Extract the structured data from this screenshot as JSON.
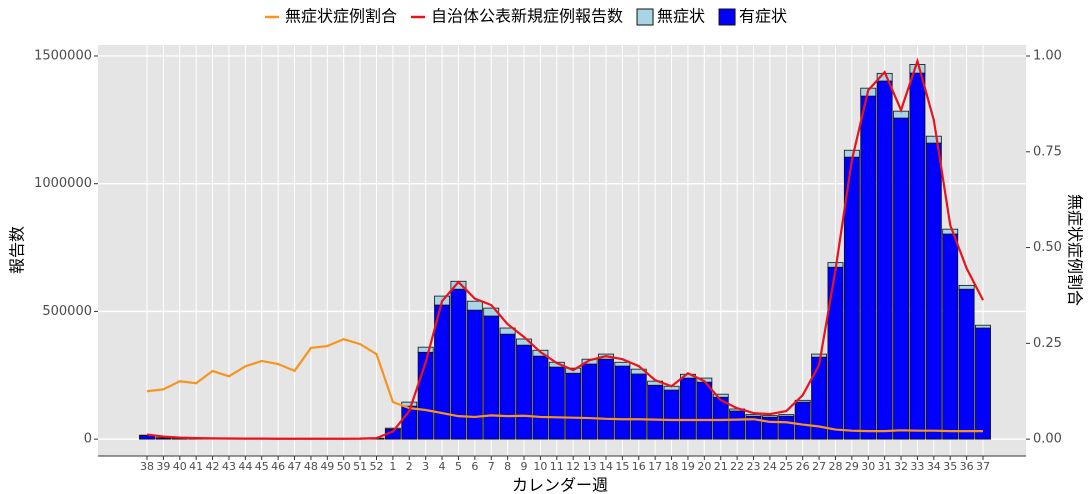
{
  "chart_data": {
    "type": "combo",
    "x_label": "カレンダー週",
    "y_label": "報告数",
    "y2_label": "無症状症例割合",
    "categories": [
      "38",
      "39",
      "40",
      "41",
      "42",
      "43",
      "44",
      "45",
      "46",
      "47",
      "48",
      "49",
      "50",
      "51",
      "52",
      "1",
      "2",
      "3",
      "4",
      "5",
      "6",
      "7",
      "8",
      "9",
      "10",
      "11",
      "12",
      "13",
      "14",
      "15",
      "16",
      "17",
      "18",
      "19",
      "20",
      "21",
      "22",
      "23",
      "24",
      "25",
      "26",
      "27",
      "28",
      "29",
      "30",
      "31",
      "32",
      "33",
      "34",
      "35",
      "36",
      "37"
    ],
    "series": [
      {
        "name": "無症状症例割合",
        "type": "line",
        "axis": "y2",
        "color": "#f7941d",
        "values": [
          0.125,
          0.13,
          0.151,
          0.146,
          0.178,
          0.164,
          0.19,
          0.204,
          0.196,
          0.178,
          0.238,
          0.243,
          0.261,
          0.248,
          0.222,
          0.097,
          0.081,
          0.076,
          0.068,
          0.06,
          0.058,
          0.062,
          0.06,
          0.061,
          0.058,
          0.057,
          0.056,
          0.055,
          0.053,
          0.052,
          0.052,
          0.051,
          0.05,
          0.05,
          0.05,
          0.05,
          0.051,
          0.052,
          0.045,
          0.044,
          0.038,
          0.033,
          0.025,
          0.022,
          0.021,
          0.021,
          0.023,
          0.022,
          0.022,
          0.021,
          0.021,
          0.021
        ]
      },
      {
        "name": "自治体公表新規症例報告数",
        "type": "line",
        "color": "#e8141c",
        "values": [
          18000,
          10000,
          6000,
          4000,
          3000,
          2500,
          2000,
          2000,
          1500,
          1500,
          1500,
          1500,
          1500,
          2000,
          4000,
          30000,
          110000,
          300000,
          540000,
          615000,
          550000,
          525000,
          450000,
          400000,
          341000,
          298000,
          270000,
          309000,
          325000,
          313000,
          286000,
          231000,
          207000,
          258000,
          227000,
          153000,
          121000,
          102000,
          98000,
          110000,
          172000,
          290000,
          662000,
          1092000,
          1366000,
          1437000,
          1288000,
          1480000,
          1249000,
          838000,
          669000,
          544000
        ]
      },
      {
        "name": "無症状",
        "type": "bar",
        "color": "#a8d4e6",
        "values": [
          1500,
          600,
          400,
          300,
          300,
          300,
          300,
          200,
          200,
          200,
          200,
          250,
          250,
          300,
          600,
          4000,
          16000,
          20000,
          35000,
          31000,
          35000,
          31000,
          24000,
          24000,
          23000,
          19000,
          20000,
          19000,
          20000,
          15000,
          19000,
          16000,
          15000,
          15000,
          16000,
          12000,
          8000,
          7000,
          6000,
          6000,
          7000,
          12000,
          18000,
          27000,
          31000,
          30000,
          27000,
          34000,
          27000,
          19000,
          15000,
          11000
        ]
      },
      {
        "name": "有症状",
        "type": "bar",
        "color": "#0000ff",
        "values": [
          14000,
          5000,
          3000,
          2000,
          2000,
          1500,
          1500,
          1000,
          1000,
          1000,
          1000,
          1000,
          1000,
          1500,
          3000,
          39000,
          129000,
          340000,
          525000,
          587000,
          505000,
          482000,
          411000,
          368000,
          325000,
          282000,
          258000,
          294000,
          313000,
          286000,
          255000,
          211000,
          192000,
          239000,
          223000,
          164000,
          110000,
          90000,
          86000,
          90000,
          145000,
          321000,
          673000,
          1104000,
          1343000,
          1402000,
          1257000,
          1433000,
          1159000,
          803000,
          587000,
          435000
        ]
      }
    ],
    "ylim": [
      -66000,
      1543000
    ],
    "yticks": [
      0,
      500000,
      1000000,
      1500000
    ],
    "y2lim": [
      -0.044,
      1.0287
    ],
    "y2ticks": [
      {
        "value": 0,
        "label": "0.00"
      },
      0.25,
      {
        "value": 0.5,
        "label": "0.50"
      },
      0.75,
      {
        "value": 1,
        "label": "1.00"
      }
    ],
    "grid": true,
    "legend": "top"
  }
}
